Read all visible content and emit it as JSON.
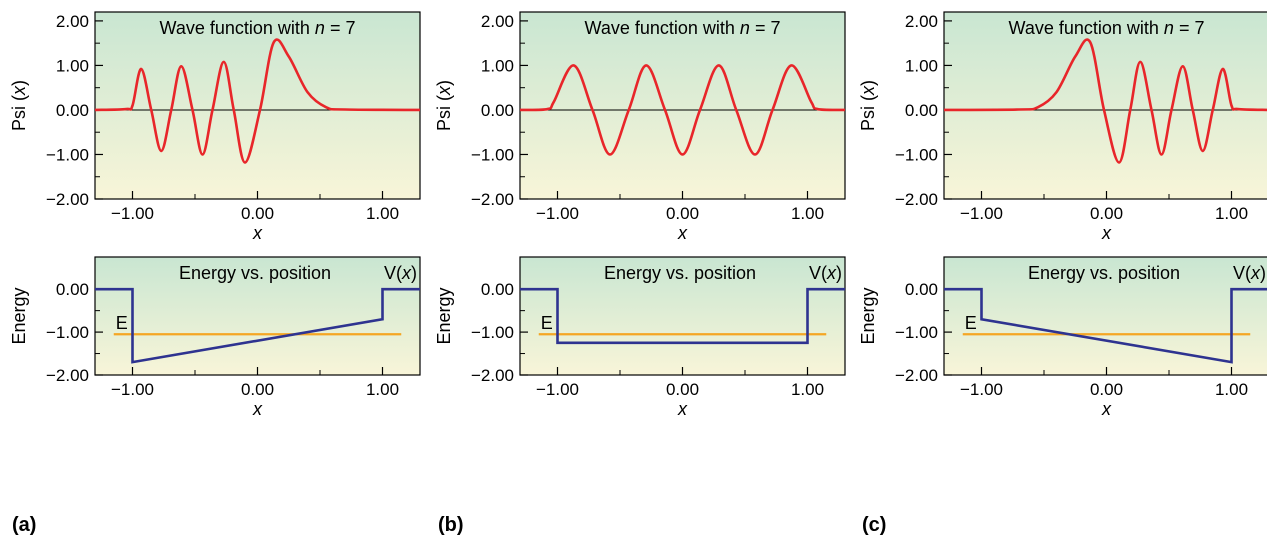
{
  "panel_labels": [
    "(a)",
    "(b)",
    "(c)"
  ],
  "colors": {
    "wave": "#e8262a",
    "potential": "#2e3390",
    "energy": "#f5a623",
    "zero_line": "#000000",
    "bg_top": "#c9e6d2",
    "bg_bottom": "#f8f5d8"
  },
  "chart_data": [
    {
      "id": "a-wave",
      "type": "line",
      "title_prefix": "Wave function with ",
      "title_var": "n",
      "title_suffix": " = 7",
      "xlabel": "x",
      "ylabel": "Psi (x)",
      "xlim": [
        -1.3,
        1.3
      ],
      "ylim": [
        -2.0,
        2.2
      ],
      "xticks": [
        -1.0,
        0.0,
        1.0
      ],
      "xtick_labels": [
        "−1.00",
        "0.00",
        "1.00"
      ],
      "yticks": [
        2.0,
        1.0,
        0.0,
        -1.0,
        -2.0
      ],
      "ytick_labels": [
        "2.00",
        "1.00",
        "0.00",
        "−1.00",
        "−2.00"
      ],
      "series": [
        {
          "x": [
            -1.3,
            -1.05,
            -1.0,
            -0.93,
            -0.85,
            -0.77,
            -0.69,
            -0.61,
            -0.52,
            -0.44,
            -0.36,
            -0.27,
            -0.19,
            -0.1,
            0.02,
            0.13,
            0.25,
            0.4,
            0.55,
            0.7,
            1.3
          ],
          "y": [
            0,
            0.02,
            0.1,
            0.92,
            0.0,
            -0.92,
            0.0,
            0.98,
            0.0,
            -1.0,
            0.0,
            1.08,
            0.0,
            -1.18,
            0.0,
            1.52,
            1.2,
            0.4,
            0.06,
            0.01,
            0
          ]
        }
      ]
    },
    {
      "id": "b-wave",
      "type": "line",
      "title_prefix": "Wave function with ",
      "title_var": "n",
      "title_suffix": " = 7",
      "xlabel": "x",
      "ylabel": "Psi (x)",
      "xlim": [
        -1.3,
        1.3
      ],
      "ylim": [
        -2.0,
        2.2
      ],
      "xticks": [
        -1.0,
        0.0,
        1.0
      ],
      "xtick_labels": [
        "−1.00",
        "0.00",
        "1.00"
      ],
      "yticks": [
        2.0,
        1.0,
        0.0,
        -1.0,
        -2.0
      ],
      "ytick_labels": [
        "2.00",
        "1.00",
        "0.00",
        "−1.00",
        "−2.00"
      ],
      "series": [
        {
          "x": [
            -1.3,
            -1.08,
            -1.03,
            -0.87,
            -0.72,
            -0.58,
            -0.43,
            -0.29,
            -0.14,
            0.0,
            0.14,
            0.29,
            0.43,
            0.58,
            0.72,
            0.87,
            1.03,
            1.08,
            1.3
          ],
          "y": [
            0,
            0.02,
            0.18,
            1.0,
            0.0,
            -1.0,
            0.0,
            1.0,
            0.0,
            -1.0,
            0.0,
            1.0,
            0.0,
            -1.0,
            0.0,
            1.0,
            0.18,
            0.02,
            0
          ]
        }
      ]
    },
    {
      "id": "c-wave",
      "type": "line",
      "title_prefix": "Wave function with ",
      "title_var": "n",
      "title_suffix": " = 7",
      "xlabel": "x",
      "ylabel": "Psi (x)",
      "xlim": [
        -1.3,
        1.3
      ],
      "ylim": [
        -2.0,
        2.2
      ],
      "xticks": [
        -1.0,
        0.0,
        1.0
      ],
      "xtick_labels": [
        "−1.00",
        "0.00",
        "1.00"
      ],
      "yticks": [
        2.0,
        1.0,
        0.0,
        -1.0,
        -2.0
      ],
      "ytick_labels": [
        "2.00",
        "1.00",
        "0.00",
        "−1.00",
        "−2.00"
      ],
      "series": [
        {
          "x": [
            -1.3,
            -0.7,
            -0.55,
            -0.4,
            -0.25,
            -0.13,
            -0.02,
            0.1,
            0.19,
            0.27,
            0.36,
            0.44,
            0.52,
            0.61,
            0.69,
            0.77,
            0.85,
            0.93,
            1.0,
            1.05,
            1.3
          ],
          "y": [
            0,
            0.01,
            0.06,
            0.4,
            1.2,
            1.52,
            0.0,
            -1.18,
            0.0,
            1.08,
            0.0,
            -1.0,
            0.0,
            0.98,
            0.0,
            -0.92,
            0.0,
            0.92,
            0.1,
            0.02,
            0
          ]
        }
      ]
    },
    {
      "id": "a-energy",
      "type": "line",
      "title": "Energy vs. position",
      "xlabel": "x",
      "ylabel": "Energy",
      "xlim": [
        -1.3,
        1.3
      ],
      "ylim": [
        -2.0,
        0.75
      ],
      "xticks": [
        -1.0,
        0.0,
        1.0
      ],
      "xtick_labels": [
        "−1.00",
        "0.00",
        "1.00"
      ],
      "yticks": [
        0.0,
        -1.0,
        -2.0
      ],
      "ytick_labels": [
        "0.00",
        "−1.00",
        "−2.00"
      ],
      "potential_label": "V(",
      "potential_var": "x",
      "potential_label_end": ")",
      "energy_label": "E",
      "energy_value": -1.05,
      "energy_x": [
        -1.15,
        1.15
      ],
      "potential": {
        "x": [
          -1.3,
          -1.0,
          -1.0,
          1.0,
          1.0,
          1.3
        ],
        "y": [
          0.0,
          0.0,
          -1.7,
          -0.7,
          0.0,
          0.0
        ]
      }
    },
    {
      "id": "b-energy",
      "type": "line",
      "title": "Energy vs. position",
      "xlabel": "x",
      "ylabel": "Energy",
      "xlim": [
        -1.3,
        1.3
      ],
      "ylim": [
        -2.0,
        0.75
      ],
      "xticks": [
        -1.0,
        0.0,
        1.0
      ],
      "xtick_labels": [
        "−1.00",
        "0.00",
        "1.00"
      ],
      "yticks": [
        0.0,
        -1.0,
        -2.0
      ],
      "ytick_labels": [
        "0.00",
        "−1.00",
        "−2.00"
      ],
      "potential_label": "V(",
      "potential_var": "x",
      "potential_label_end": ")",
      "energy_label": "E",
      "energy_value": -1.05,
      "energy_x": [
        -1.15,
        1.15
      ],
      "potential": {
        "x": [
          -1.3,
          -1.0,
          -1.0,
          1.0,
          1.0,
          1.3
        ],
        "y": [
          0.0,
          0.0,
          -1.25,
          -1.25,
          0.0,
          0.0
        ]
      }
    },
    {
      "id": "c-energy",
      "type": "line",
      "title": "Energy vs. position",
      "xlabel": "x",
      "ylabel": "Energy",
      "xlim": [
        -1.3,
        1.3
      ],
      "ylim": [
        -2.0,
        0.75
      ],
      "xticks": [
        -1.0,
        0.0,
        1.0
      ],
      "xtick_labels": [
        "−1.00",
        "0.00",
        "1.00"
      ],
      "yticks": [
        0.0,
        -1.0,
        -2.0
      ],
      "ytick_labels": [
        "0.00",
        "−1.00",
        "−2.00"
      ],
      "potential_label": "V(",
      "potential_var": "x",
      "potential_label_end": ")",
      "energy_label": "E",
      "energy_value": -1.05,
      "energy_x": [
        -1.15,
        1.15
      ],
      "potential": {
        "x": [
          -1.3,
          -1.0,
          -1.0,
          1.0,
          1.0,
          1.3
        ],
        "y": [
          0.0,
          0.0,
          -0.7,
          -1.7,
          0.0,
          0.0
        ]
      }
    }
  ]
}
